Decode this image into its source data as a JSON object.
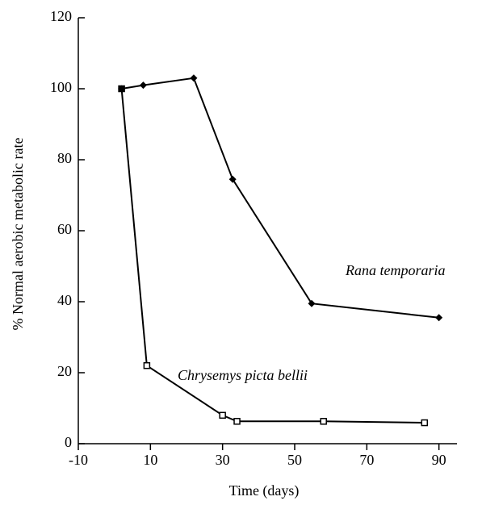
{
  "chart_data": {
    "type": "line",
    "x_label": "Time (days)",
    "y_label": "% Normal aerobic metabolic rate",
    "x": [
      2,
      8,
      22,
      32.8,
      54.7,
      90
    ],
    "series": [
      {
        "name": "Rana temporaria",
        "color": "#000000",
        "marker": "diamond",
        "x": [
          2,
          8,
          22,
          32.8,
          54.7,
          90
        ],
        "values": [
          100,
          101,
          103,
          74.5,
          39.5,
          35.5
        ]
      },
      {
        "name": "Chrysemys picta bellii",
        "color": "#000000",
        "marker": "open-square",
        "x": [
          2,
          9,
          30,
          34,
          58,
          86
        ],
        "values": [
          100,
          22,
          8,
          6.3,
          6.3,
          5.9
        ]
      }
    ],
    "xlim": [
      -10,
      95
    ],
    "xticks": [
      -10,
      10,
      30,
      50,
      70,
      90
    ],
    "ylim": [
      0,
      120
    ],
    "yticks": [
      0,
      20,
      40,
      60,
      80,
      100,
      120
    ],
    "grid": false
  }
}
